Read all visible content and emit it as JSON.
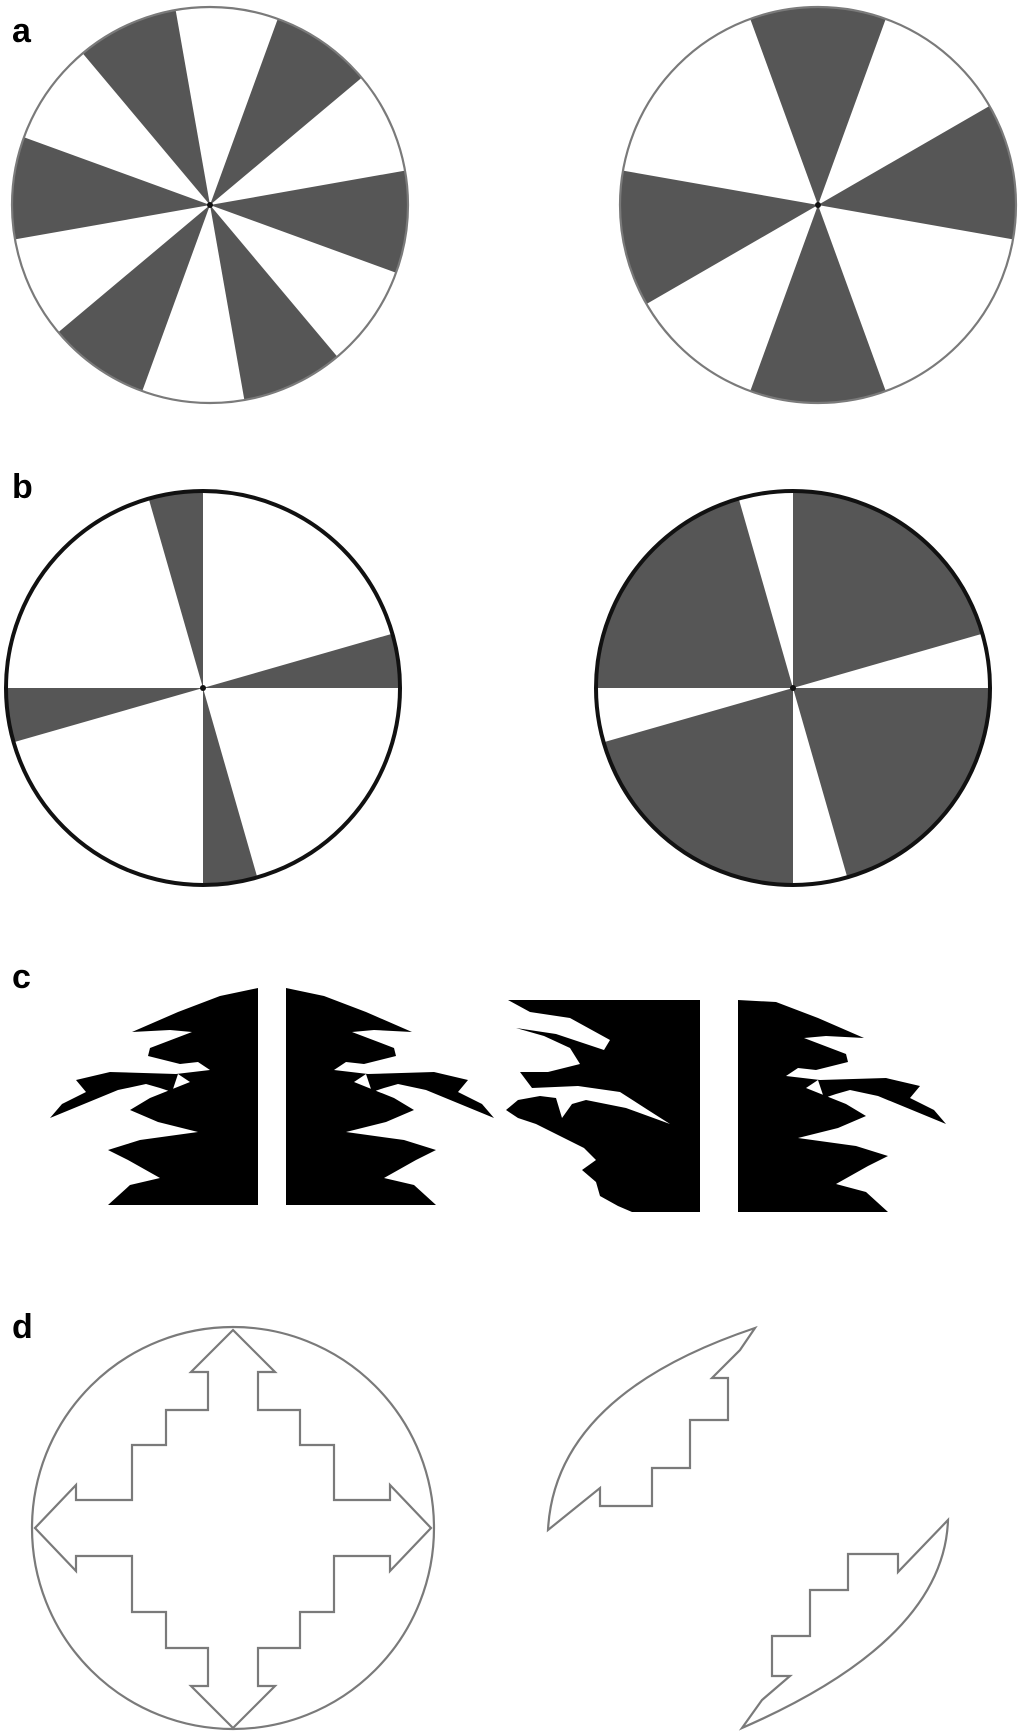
{
  "panels": {
    "a": {
      "label": "a"
    },
    "b": {
      "label": "b"
    },
    "c": {
      "label": "c"
    },
    "d": {
      "label": "d"
    }
  },
  "colors": {
    "gray_fill": "#565656",
    "black_fill": "#000000",
    "outline": "#7a7a7a",
    "thick_outline": "#111111",
    "background": "#ffffff"
  }
}
